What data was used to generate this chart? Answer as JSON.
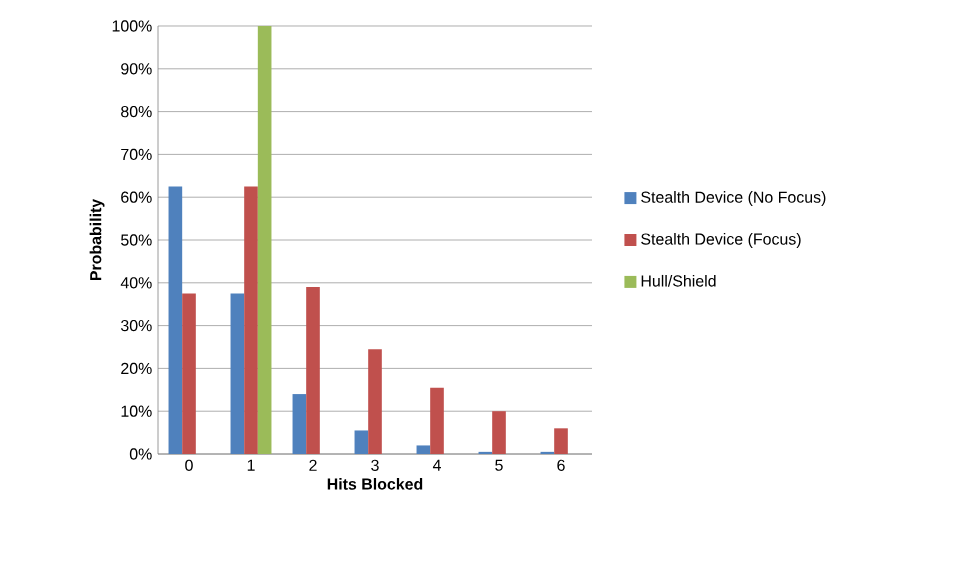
{
  "chart_data": {
    "type": "bar",
    "xlabel": "Hits Blocked",
    "ylabel": "Probability",
    "categories": [
      "0",
      "1",
      "2",
      "3",
      "4",
      "5",
      "6"
    ],
    "series": [
      {
        "name": "Stealth Device (No Focus)",
        "color": "#4f81bd",
        "values": [
          62.5,
          37.5,
          14,
          5.5,
          2,
          0.5,
          0.5
        ]
      },
      {
        "name": "Stealth Device (Focus)",
        "color": "#c0504d",
        "values": [
          37.5,
          62.5,
          39,
          24.5,
          15.5,
          10,
          6
        ]
      },
      {
        "name": "Hull/Shield",
        "color": "#9bbb59",
        "values": [
          null,
          100,
          null,
          null,
          null,
          null,
          null
        ]
      }
    ],
    "ylim": [
      0,
      100
    ],
    "yticks": [
      {
        "value": 0,
        "label": "0%"
      },
      {
        "value": 10,
        "label": "10%"
      },
      {
        "value": 20,
        "label": "20%"
      },
      {
        "value": 30,
        "label": "30%"
      },
      {
        "value": 40,
        "label": "40%"
      },
      {
        "value": 50,
        "label": "50%"
      },
      {
        "value": 60,
        "label": "60%"
      },
      {
        "value": 70,
        "label": "70%"
      },
      {
        "value": 80,
        "label": "80%"
      },
      {
        "value": 90,
        "label": "90%"
      },
      {
        "value": 100,
        "label": "100%"
      }
    ],
    "grid": "y",
    "legend": "right"
  }
}
